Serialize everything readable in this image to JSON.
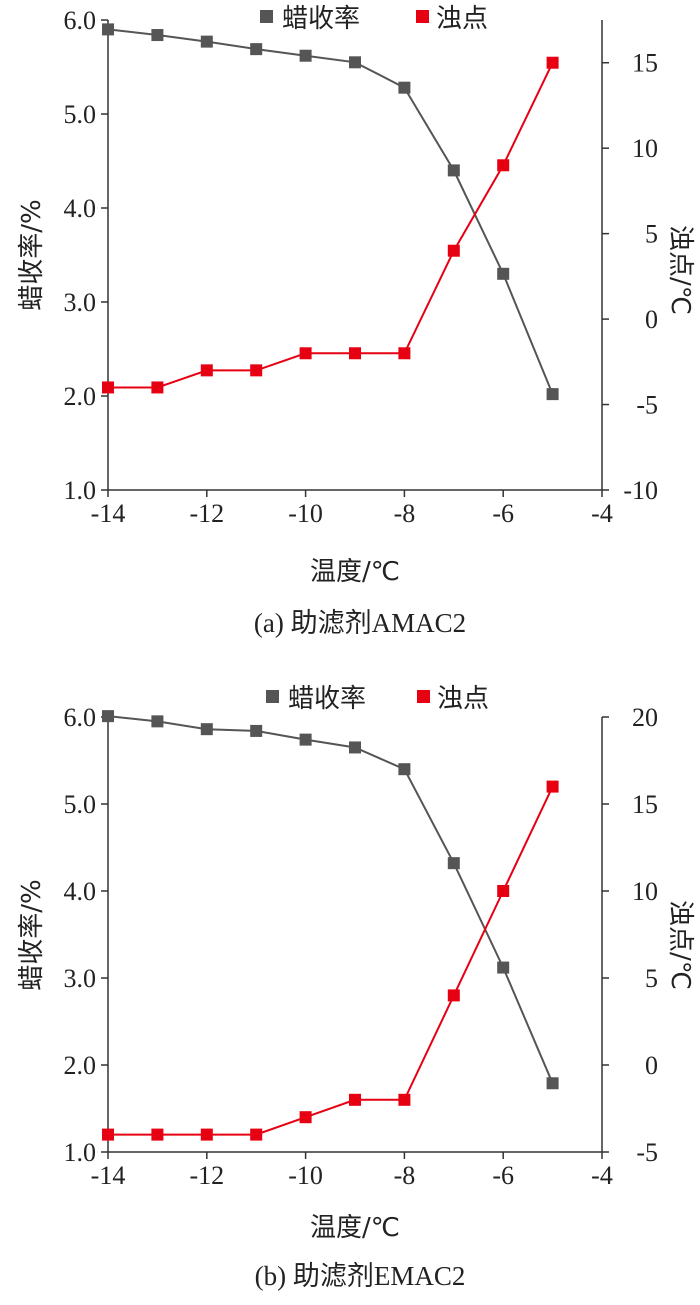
{
  "chart_data": [
    {
      "type": "line",
      "caption": "(a) 助滤剂AMAC2",
      "xlabel": "温度/℃",
      "ylabel_left": "蜡收率/%",
      "ylabel_right": "浊点/℃",
      "xlim": [
        -14,
        -4
      ],
      "ylim_left": [
        1.0,
        6.0
      ],
      "ylim_right": [
        -10,
        17.5
      ],
      "x_ticks": [
        "-14",
        "-12",
        "-10",
        "-8",
        "-6",
        "-4"
      ],
      "y_left_ticks": [
        "1.0",
        "2.0",
        "3.0",
        "4.0",
        "5.0",
        "6.0"
      ],
      "y_right_ticks": [
        "-10",
        "-5",
        "0",
        "5",
        "10",
        "15"
      ],
      "legend_position": "top-center",
      "series": [
        {
          "name": "蜡收率",
          "axis": "left",
          "color": "#555555",
          "x": [
            -14,
            -13,
            -12,
            -11,
            -10,
            -9,
            -8,
            -7,
            -6,
            -5
          ],
          "values": [
            5.9,
            5.84,
            5.77,
            5.69,
            5.62,
            5.55,
            5.28,
            4.4,
            3.3,
            2.02
          ]
        },
        {
          "name": "浊点",
          "axis": "right",
          "color": "#e60012",
          "x": [
            -14,
            -13,
            -12,
            -11,
            -10,
            -9,
            -8,
            -7,
            -6,
            -5
          ],
          "values": [
            -4,
            -4,
            -3,
            -3,
            -2,
            -2,
            -2,
            4,
            9,
            15
          ]
        }
      ]
    },
    {
      "type": "line",
      "caption": "(b) 助滤剂EMAC2",
      "xlabel": "温度/℃",
      "ylabel_left": "蜡收率/%",
      "ylabel_right": "浊点/℃",
      "xlim": [
        -14,
        -4
      ],
      "ylim_left": [
        1.0,
        6.0
      ],
      "ylim_right": [
        -5,
        20
      ],
      "x_ticks": [
        "-14",
        "-12",
        "-10",
        "-8",
        "-6",
        "-4"
      ],
      "y_left_ticks": [
        "1.0",
        "2.0",
        "3.0",
        "4.0",
        "5.0",
        "6.0"
      ],
      "y_right_ticks": [
        "-5",
        "0",
        "5",
        "10",
        "15",
        "20"
      ],
      "legend_position": "top-center",
      "series": [
        {
          "name": "蜡收率",
          "axis": "left",
          "color": "#555555",
          "x": [
            -14,
            -13,
            -12,
            -11,
            -10,
            -9,
            -8,
            -7,
            -6,
            -5
          ],
          "values": [
            6.01,
            5.95,
            5.86,
            5.84,
            5.74,
            5.65,
            5.4,
            4.32,
            3.12,
            1.79
          ]
        },
        {
          "name": "浊点",
          "axis": "right",
          "color": "#e60012",
          "x": [
            -14,
            -13,
            -12,
            -11,
            -10,
            -9,
            -8,
            -7,
            -6,
            -5
          ],
          "values": [
            -4,
            -4,
            -4,
            -4,
            -3,
            -2,
            -2,
            4,
            10,
            16
          ]
        }
      ]
    }
  ]
}
